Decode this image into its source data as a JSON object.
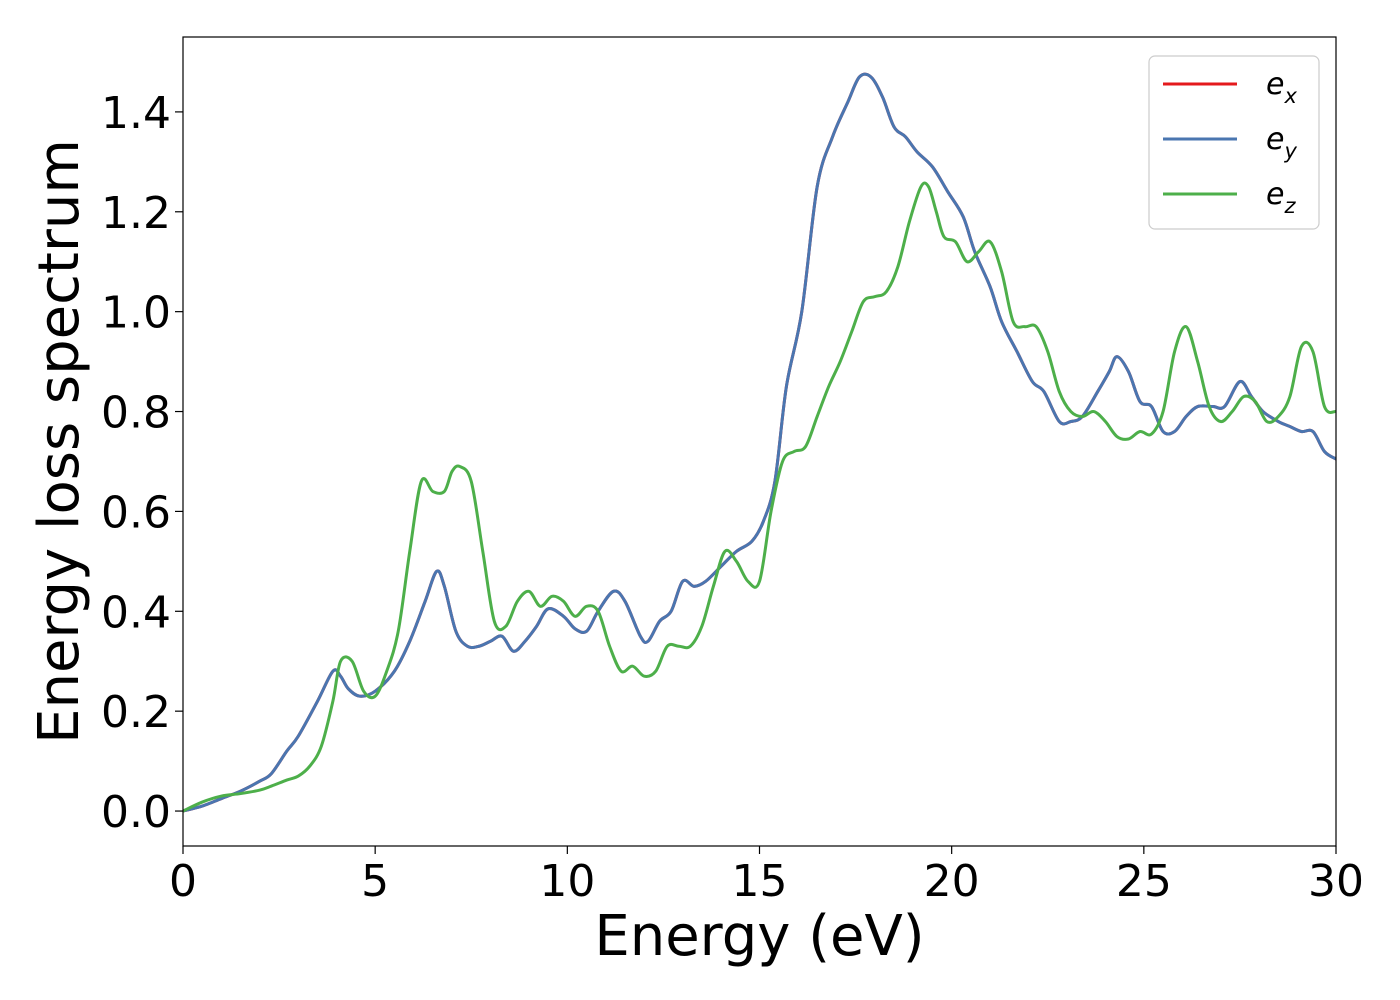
{
  "chart_data": {
    "type": "line",
    "title": "",
    "xlabel": "Energy (eV)",
    "ylabel": "Energy loss spectrum",
    "xlim": [
      0,
      30
    ],
    "ylim": [
      -0.07,
      1.55
    ],
    "xticks": [
      0,
      5,
      10,
      15,
      20,
      25,
      30
    ],
    "xtick_labels": [
      "0",
      "5",
      "10",
      "15",
      "20",
      "25",
      "30"
    ],
    "yticks": [
      0.0,
      0.2,
      0.4,
      0.6,
      0.8,
      1.0,
      1.2,
      1.4
    ],
    "ytick_labels": [
      "0.0",
      "0.2",
      "0.4",
      "0.6",
      "0.8",
      "1.0",
      "1.2",
      "1.4"
    ],
    "grid": false,
    "legend_position": "top-right",
    "series": [
      {
        "name": "e_x",
        "legend_base": "e",
        "legend_sub": "x",
        "color": "#e41a1c",
        "x": [
          0,
          0.5,
          1,
          1.5,
          2,
          2.3,
          2.7,
          3,
          3.5,
          3.9,
          4.1,
          4.3,
          4.6,
          5,
          5.5,
          5.9,
          6.3,
          6.6,
          6.8,
          7.1,
          7.4,
          7.7,
          8,
          8.3,
          8.6,
          8.9,
          9.2,
          9.5,
          9.9,
          10.2,
          10.5,
          10.8,
          11.2,
          11.5,
          11.9,
          12.1,
          12.4,
          12.7,
          13.0,
          13.3,
          13.6,
          14.0,
          14.4,
          14.8,
          15.1,
          15.4,
          15.7,
          16.1,
          16.5,
          16.9,
          17.3,
          17.6,
          17.9,
          18.2,
          18.5,
          18.8,
          19.1,
          19.5,
          19.9,
          20.3,
          20.6,
          21.0,
          21.3,
          21.7,
          22.1,
          22.4,
          22.8,
          23.1,
          23.4,
          23.8,
          24.1,
          24.3,
          24.6,
          24.9,
          25.2,
          25.5,
          25.8,
          26.1,
          26.4,
          26.8,
          27.1,
          27.5,
          27.8,
          28.1,
          28.5,
          28.8,
          29.1,
          29.4,
          29.7,
          30
        ],
        "values": [
          0.0,
          0.01,
          0.025,
          0.04,
          0.06,
          0.075,
          0.12,
          0.15,
          0.22,
          0.28,
          0.27,
          0.245,
          0.23,
          0.24,
          0.28,
          0.34,
          0.42,
          0.48,
          0.45,
          0.36,
          0.33,
          0.33,
          0.34,
          0.35,
          0.32,
          0.34,
          0.37,
          0.405,
          0.39,
          0.365,
          0.36,
          0.4,
          0.44,
          0.42,
          0.35,
          0.34,
          0.38,
          0.4,
          0.46,
          0.45,
          0.46,
          0.49,
          0.52,
          0.54,
          0.58,
          0.66,
          0.85,
          1.0,
          1.25,
          1.35,
          1.42,
          1.47,
          1.47,
          1.43,
          1.37,
          1.35,
          1.32,
          1.29,
          1.24,
          1.19,
          1.12,
          1.05,
          0.98,
          0.92,
          0.86,
          0.84,
          0.78,
          0.78,
          0.79,
          0.84,
          0.88,
          0.91,
          0.88,
          0.82,
          0.81,
          0.76,
          0.76,
          0.79,
          0.81,
          0.81,
          0.81,
          0.86,
          0.83,
          0.8,
          0.78,
          0.77,
          0.76,
          0.76,
          0.72,
          0.705
        ]
      },
      {
        "name": "e_y",
        "legend_base": "e",
        "legend_sub": "y",
        "color": "#4a76b0",
        "x": [
          0,
          0.5,
          1,
          1.5,
          2,
          2.3,
          2.7,
          3,
          3.5,
          3.9,
          4.1,
          4.3,
          4.6,
          5,
          5.5,
          5.9,
          6.3,
          6.6,
          6.8,
          7.1,
          7.4,
          7.7,
          8,
          8.3,
          8.6,
          8.9,
          9.2,
          9.5,
          9.9,
          10.2,
          10.5,
          10.8,
          11.2,
          11.5,
          11.9,
          12.1,
          12.4,
          12.7,
          13.0,
          13.3,
          13.6,
          14.0,
          14.4,
          14.8,
          15.1,
          15.4,
          15.7,
          16.1,
          16.5,
          16.9,
          17.3,
          17.6,
          17.9,
          18.2,
          18.5,
          18.8,
          19.1,
          19.5,
          19.9,
          20.3,
          20.6,
          21.0,
          21.3,
          21.7,
          22.1,
          22.4,
          22.8,
          23.1,
          23.4,
          23.8,
          24.1,
          24.3,
          24.6,
          24.9,
          25.2,
          25.5,
          25.8,
          26.1,
          26.4,
          26.8,
          27.1,
          27.5,
          27.8,
          28.1,
          28.5,
          28.8,
          29.1,
          29.4,
          29.7,
          30
        ],
        "values": [
          0.0,
          0.01,
          0.025,
          0.04,
          0.06,
          0.075,
          0.12,
          0.15,
          0.22,
          0.28,
          0.27,
          0.245,
          0.23,
          0.24,
          0.28,
          0.34,
          0.42,
          0.48,
          0.45,
          0.36,
          0.33,
          0.33,
          0.34,
          0.35,
          0.32,
          0.34,
          0.37,
          0.405,
          0.39,
          0.365,
          0.36,
          0.4,
          0.44,
          0.42,
          0.35,
          0.34,
          0.38,
          0.4,
          0.46,
          0.45,
          0.46,
          0.49,
          0.52,
          0.54,
          0.58,
          0.66,
          0.85,
          1.0,
          1.25,
          1.35,
          1.42,
          1.47,
          1.47,
          1.43,
          1.37,
          1.35,
          1.32,
          1.29,
          1.24,
          1.19,
          1.12,
          1.05,
          0.98,
          0.92,
          0.86,
          0.84,
          0.78,
          0.78,
          0.79,
          0.84,
          0.88,
          0.91,
          0.88,
          0.82,
          0.81,
          0.76,
          0.76,
          0.79,
          0.81,
          0.81,
          0.81,
          0.86,
          0.83,
          0.8,
          0.78,
          0.77,
          0.76,
          0.76,
          0.72,
          0.705
        ]
      },
      {
        "name": "e_z",
        "legend_base": "e",
        "legend_sub": "z",
        "color": "#4daf4a",
        "x": [
          0,
          0.5,
          1,
          1.5,
          2,
          2.3,
          2.7,
          3,
          3.3,
          3.6,
          3.9,
          4.1,
          4.4,
          4.7,
          5,
          5.3,
          5.6,
          5.9,
          6.2,
          6.5,
          6.8,
          7.0,
          7.2,
          7.5,
          7.8,
          8.1,
          8.4,
          8.7,
          9.0,
          9.3,
          9.6,
          9.9,
          10.2,
          10.5,
          10.8,
          11.1,
          11.4,
          11.7,
          12.0,
          12.3,
          12.6,
          12.9,
          13.2,
          13.5,
          13.8,
          14.1,
          14.4,
          14.7,
          15.0,
          15.3,
          15.6,
          15.9,
          16.2,
          16.5,
          16.8,
          17.1,
          17.4,
          17.7,
          18.0,
          18.3,
          18.6,
          18.9,
          19.2,
          19.4,
          19.6,
          19.8,
          20.1,
          20.4,
          20.7,
          21.0,
          21.3,
          21.6,
          21.9,
          22.2,
          22.5,
          22.8,
          23.1,
          23.4,
          23.7,
          24.0,
          24.3,
          24.6,
          24.9,
          25.2,
          25.5,
          25.8,
          26.1,
          26.4,
          26.7,
          27.0,
          27.3,
          27.6,
          27.9,
          28.2,
          28.5,
          28.8,
          29.1,
          29.4,
          29.7,
          30
        ],
        "values": [
          0.0,
          0.018,
          0.03,
          0.035,
          0.042,
          0.05,
          0.062,
          0.07,
          0.09,
          0.13,
          0.22,
          0.3,
          0.3,
          0.24,
          0.23,
          0.28,
          0.36,
          0.52,
          0.66,
          0.64,
          0.64,
          0.68,
          0.69,
          0.66,
          0.52,
          0.38,
          0.37,
          0.42,
          0.44,
          0.41,
          0.43,
          0.42,
          0.39,
          0.41,
          0.4,
          0.33,
          0.28,
          0.29,
          0.27,
          0.28,
          0.33,
          0.33,
          0.33,
          0.37,
          0.45,
          0.52,
          0.5,
          0.46,
          0.46,
          0.6,
          0.7,
          0.72,
          0.73,
          0.79,
          0.85,
          0.9,
          0.96,
          1.02,
          1.03,
          1.04,
          1.09,
          1.18,
          1.25,
          1.25,
          1.2,
          1.15,
          1.14,
          1.1,
          1.12,
          1.14,
          1.08,
          0.98,
          0.97,
          0.97,
          0.92,
          0.84,
          0.8,
          0.79,
          0.8,
          0.78,
          0.75,
          0.745,
          0.76,
          0.755,
          0.8,
          0.92,
          0.97,
          0.9,
          0.81,
          0.78,
          0.8,
          0.83,
          0.82,
          0.78,
          0.79,
          0.83,
          0.93,
          0.92,
          0.81,
          0.8
        ]
      }
    ]
  }
}
